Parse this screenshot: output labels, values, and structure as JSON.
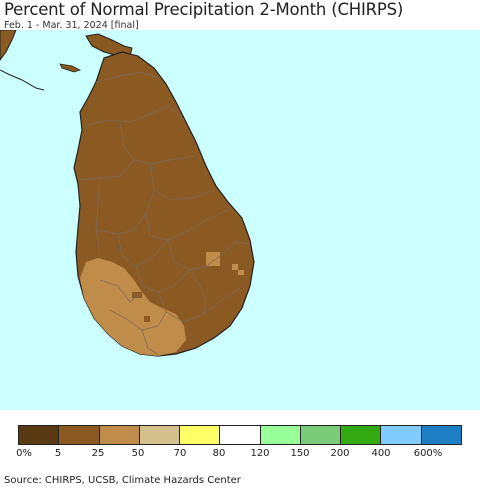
{
  "header": {
    "title": "Percent of Normal Precipitation 2-Month (CHIRPS)",
    "subtitle": "Feb. 1 - Mar. 31, 2024 [final]"
  },
  "map": {
    "region": "Sri Lanka",
    "ocean_color": "#ccffff",
    "land_dominant_color": "#8b5a22",
    "land_secondary_color": "#bf8c4a"
  },
  "legend": {
    "colors": [
      "#5a3a12",
      "#8b5a22",
      "#bf8c4a",
      "#d4c08c",
      "#ffff66",
      "#ffffff",
      "#99ff99",
      "#7acc7a",
      "#33aa11",
      "#80ccff",
      "#1f7fc4"
    ],
    "labels": [
      "0%",
      "5",
      "25",
      "50",
      "70",
      "80",
      "120",
      "150",
      "200",
      "400",
      "600%"
    ]
  },
  "footer": {
    "source": "Source: CHIRPS, UCSB, Climate Hazards Center"
  }
}
